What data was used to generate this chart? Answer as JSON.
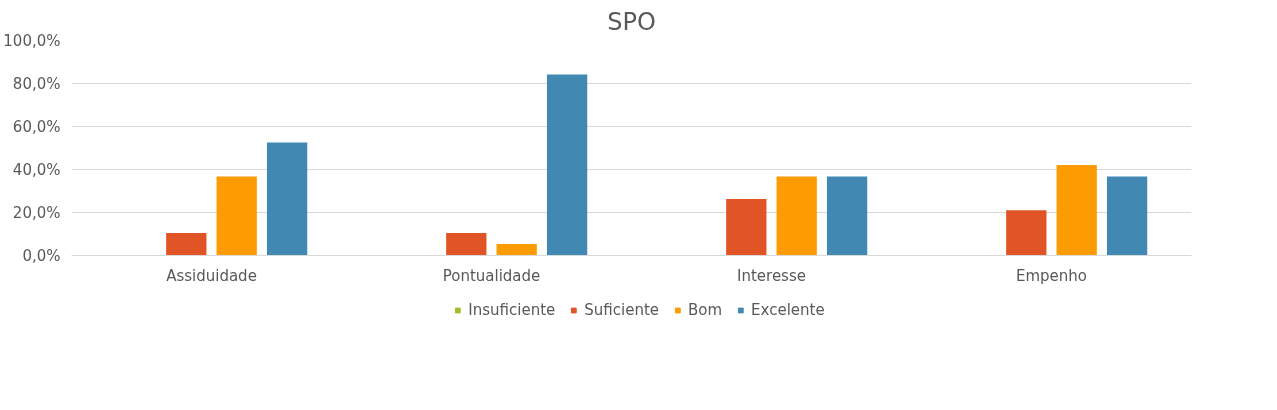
{
  "chart_data": {
    "type": "bar",
    "title": "SPO",
    "categories": [
      "Assiduidade",
      "Pontualidade",
      "Interesse",
      "Empenho"
    ],
    "series": [
      {
        "name": "Insuficiente",
        "color": "#a5b92a",
        "values": [
          0,
          0,
          0,
          0
        ]
      },
      {
        "name": "Suficiente",
        "color": "#e05426",
        "values": [
          10.5,
          10.5,
          26.3,
          21.1
        ]
      },
      {
        "name": "Bom",
        "color": "#fd9c02",
        "values": [
          36.8,
          5.3,
          36.8,
          42.1
        ]
      },
      {
        "name": "Excelente",
        "color": "#4189b3",
        "values": [
          52.6,
          84.2,
          36.8,
          36.8
        ]
      }
    ],
    "ylim": [
      0,
      100
    ],
    "yticks": [
      {
        "value": 0,
        "label": "0,0%"
      },
      {
        "value": 20,
        "label": "20,0%"
      },
      {
        "value": 40,
        "label": "40,0%"
      },
      {
        "value": 60,
        "label": "60,0%"
      },
      {
        "value": 80,
        "label": "80,0%"
      },
      {
        "value": 100,
        "label": "100,0%"
      }
    ],
    "grid": "y",
    "legend": "bottom"
  }
}
